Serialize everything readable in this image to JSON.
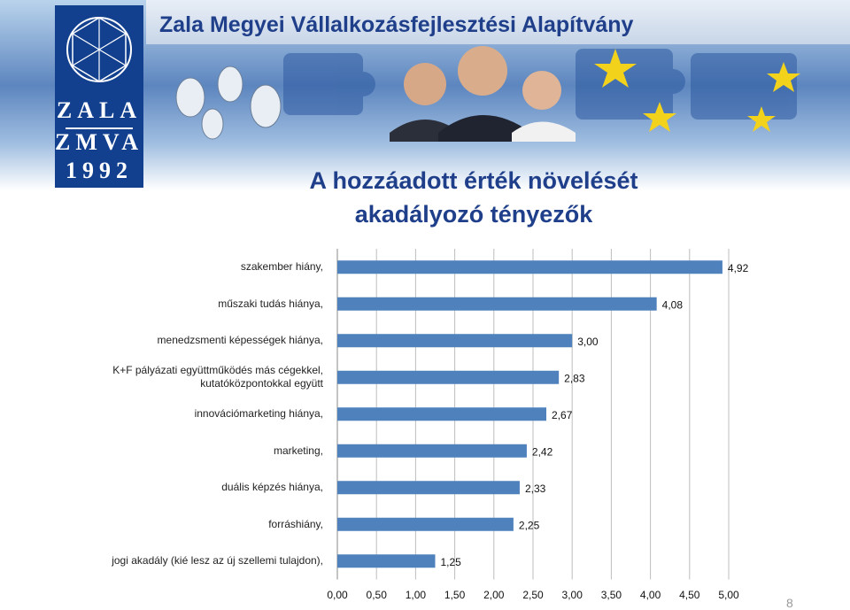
{
  "header": {
    "org_name": "Zala Megyei Vállalkozásfejlesztési Alapítvány",
    "logo_lines": [
      "ZALA",
      "ZMVA",
      "1992"
    ]
  },
  "title_line1": "A hozzáadott érték növelését",
  "title_line2": "akadályozó tényezők",
  "page_number": "8",
  "colors": {
    "bar": "#4f81bd",
    "title": "#1f3f8a",
    "logo_bg": "#12408f"
  },
  "chart_data": {
    "type": "bar",
    "orientation": "horizontal",
    "categories": [
      "szakember hiány,",
      "műszaki tudás hiánya,",
      "menedzsmenti képességek hiánya,",
      "K+F pályázati együttműködés más cégekkel, kutatóközpontokkal együtt",
      "innovációmarketing hiánya,",
      "marketing,",
      "duális képzés hiánya,",
      "forráshiány,",
      "jogi akadály (kié lesz az új szellemi tulajdon),"
    ],
    "category_lines": [
      [
        "szakember hiány,"
      ],
      [
        "műszaki tudás hiánya,"
      ],
      [
        "menedzsmenti képességek hiánya,"
      ],
      [
        "K+F pályázati együttműködés más cégekkel,",
        "kutatóközpontokkal együtt"
      ],
      [
        "innovációmarketing hiánya,"
      ],
      [
        "marketing,"
      ],
      [
        "duális képzés hiánya,"
      ],
      [
        "forráshiány,"
      ],
      [
        "jogi akadály (kié lesz az új szellemi tulajdon),"
      ]
    ],
    "values": [
      4.92,
      4.08,
      3.0,
      2.83,
      2.67,
      2.42,
      2.33,
      2.25,
      1.25
    ],
    "value_labels": [
      "4,92",
      "4,08",
      "3,00",
      "2,83",
      "2,67",
      "2,42",
      "2,33",
      "2,25",
      "1,25"
    ],
    "xlim": [
      0,
      5
    ],
    "x_ticks": [
      "0,00",
      "0,50",
      "1,00",
      "1,50",
      "2,00",
      "2,50",
      "3,00",
      "3,50",
      "4,00",
      "4,50",
      "5,00"
    ],
    "grid": true,
    "legend": "none"
  }
}
